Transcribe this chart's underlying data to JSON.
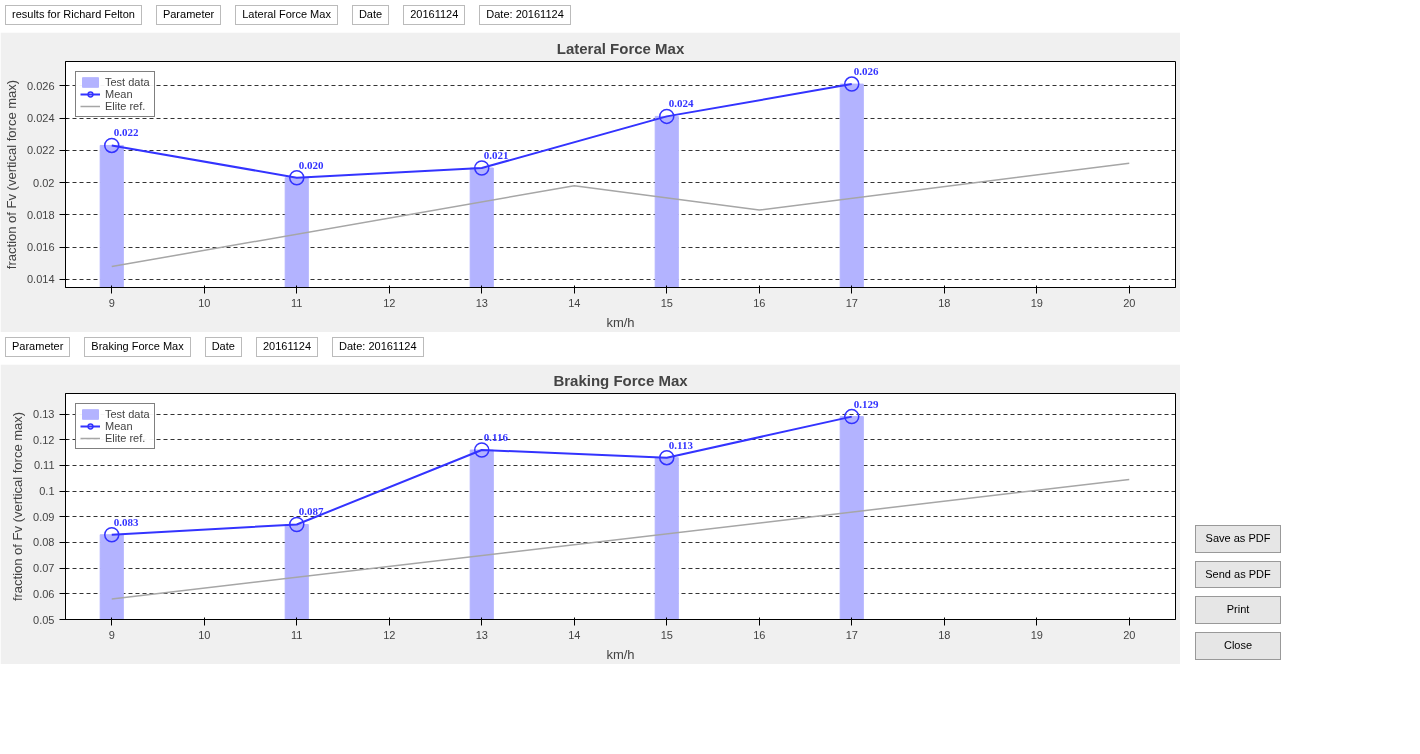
{
  "chart_data": [
    {
      "type": "bar",
      "title": "Lateral Force Max",
      "xlabel": "km/h",
      "ylabel": "fraction of Fv (vertical force max)",
      "annotations": [
        "results for Richard Felton",
        "Parameter",
        "Lateral Force Max",
        "Date",
        "20161124",
        "Date: 20161124"
      ],
      "xlim": [
        8.5,
        20.5
      ],
      "xticks": [
        9,
        10,
        11,
        12,
        13,
        14,
        15,
        16,
        17,
        18,
        19,
        20
      ],
      "ylim": [
        0.0135,
        0.0275
      ],
      "yticks": [
        0.014,
        0.016,
        0.018,
        {
          "value": 0.02,
          "label": "0.02"
        },
        0.022,
        0.024,
        0.026
      ],
      "grid": "y",
      "legend": "top left",
      "series": [
        {
          "name": "Test data",
          "type": "bar",
          "color": "#b3b3ff",
          "x": [
            9,
            11,
            13,
            15,
            17
          ],
          "values": [
            0.0223,
            0.0203,
            0.0209,
            0.0241,
            0.0261
          ]
        },
        {
          "name": "Mean",
          "type": "line",
          "marker": "circle",
          "color": "#3333ff",
          "x": [
            9,
            11,
            13,
            15,
            17
          ],
          "values": [
            0.0223,
            0.0203,
            0.0209,
            0.0241,
            0.0261
          ],
          "value_labels": [
            "0.022",
            "0.020",
            "0.021",
            "0.024",
            "0.026"
          ]
        },
        {
          "name": "Elite ref.",
          "type": "line",
          "color": "#a6a6a6",
          "x": [
            9,
            14,
            16,
            20
          ],
          "values": [
            0.0148,
            0.0198,
            0.0183,
            0.0212
          ]
        }
      ]
    },
    {
      "type": "bar",
      "title": "Braking Force Max",
      "xlabel": "km/h",
      "ylabel": "fraction of Fv (vertical force max)",
      "annotations": [
        "Parameter",
        "Braking Force Max",
        "Date",
        "20161124",
        "Date: 20161124"
      ],
      "xlim": [
        8.5,
        20.5
      ],
      "xticks": [
        9,
        10,
        11,
        12,
        13,
        14,
        15,
        16,
        17,
        18,
        19,
        20
      ],
      "ylim": [
        0.05,
        0.138
      ],
      "yticks": [
        0.05,
        0.06,
        0.07,
        0.08,
        0.09,
        {
          "value": 0.1,
          "label": "0.1"
        },
        0.11,
        0.12,
        0.13
      ],
      "grid": "y",
      "legend": "top left",
      "series": [
        {
          "name": "Test data",
          "type": "bar",
          "color": "#b3b3ff",
          "x": [
            9,
            11,
            13,
            15,
            17
          ],
          "values": [
            0.083,
            0.087,
            0.116,
            0.113,
            0.129
          ]
        },
        {
          "name": "Mean",
          "type": "line",
          "marker": "circle",
          "color": "#3333ff",
          "x": [
            9,
            11,
            13,
            15,
            17
          ],
          "values": [
            0.083,
            0.087,
            0.116,
            0.113,
            0.129
          ],
          "value_labels": [
            "0.083",
            "0.087",
            "0.116",
            "0.113",
            "0.129"
          ]
        },
        {
          "name": "Elite ref.",
          "type": "line",
          "color": "#a6a6a6",
          "x": [
            9,
            20
          ],
          "values": [
            0.058,
            0.1045
          ]
        }
      ]
    },
    {
      "type": "other",
      "annotations": [
        "Save as PDF",
        "Send as PDF",
        "Print",
        "Close"
      ]
    }
  ]
}
